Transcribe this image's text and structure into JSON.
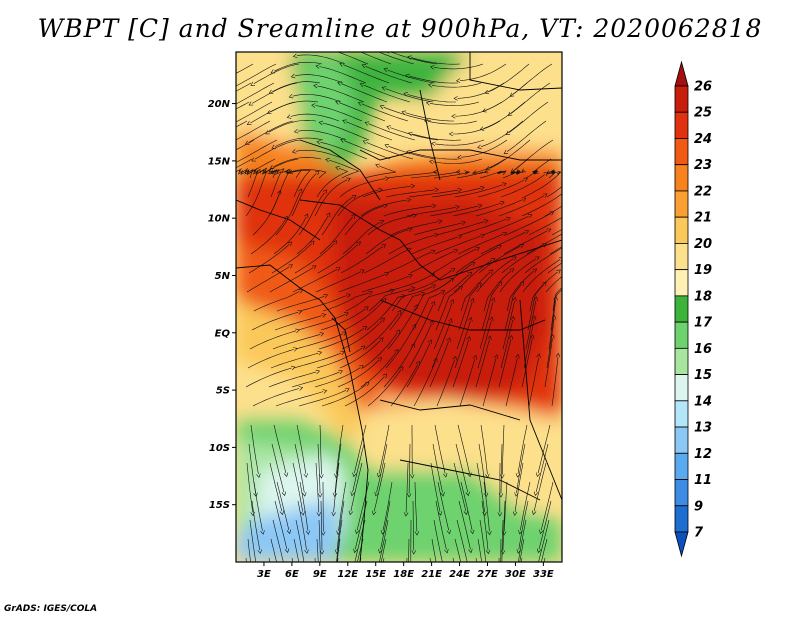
{
  "title": "WBPT [C] and Sreamline at 900hPa, VT: 2020062818",
  "credit": "GrADS: IGES/COLA",
  "map": {
    "lon_range": [
      0,
      35
    ],
    "lat_range": [
      -20,
      24.5
    ],
    "lat_ticks": [
      {
        "value": 20,
        "label": "20N"
      },
      {
        "value": 15,
        "label": "15N"
      },
      {
        "value": 10,
        "label": "10N"
      },
      {
        "value": 5,
        "label": "5N"
      },
      {
        "value": 0,
        "label": "EQ"
      },
      {
        "value": -5,
        "label": "5S"
      },
      {
        "value": -10,
        "label": "10S"
      },
      {
        "value": -15,
        "label": "15S"
      }
    ],
    "lon_ticks": [
      {
        "value": 3,
        "label": "3E"
      },
      {
        "value": 6,
        "label": "6E"
      },
      {
        "value": 9,
        "label": "9E"
      },
      {
        "value": 12,
        "label": "12E"
      },
      {
        "value": 15,
        "label": "15E"
      },
      {
        "value": 18,
        "label": "18E"
      },
      {
        "value": 21,
        "label": "21E"
      },
      {
        "value": 24,
        "label": "24E"
      },
      {
        "value": 27,
        "label": "27E"
      },
      {
        "value": 30,
        "label": "30E"
      },
      {
        "value": 33,
        "label": "33E"
      }
    ]
  },
  "colorbar": {
    "levels": [
      "26",
      "25",
      "24",
      "23",
      "22",
      "21",
      "20",
      "19",
      "18",
      "17",
      "16",
      "15",
      "14",
      "13",
      "12",
      "11",
      "9",
      "7"
    ],
    "colors": [
      "#a50f0f",
      "#c81e0c",
      "#e0320e",
      "#f05a14",
      "#f7821e",
      "#faa032",
      "#fbc85a",
      "#fde08c",
      "#fff0b4",
      "#3cb43c",
      "#6ed26e",
      "#a8e6a0",
      "#dcf5ee",
      "#b4e6fa",
      "#8cc8f5",
      "#5aaaf0",
      "#3c8ce6",
      "#1e6ed2",
      "#0a50be"
    ]
  },
  "fields": {
    "regions": [
      {
        "name": "green-sahara-north",
        "color": "#3cb43c"
      },
      {
        "name": "light-green-sahara",
        "color": "#6ed26e"
      },
      {
        "name": "pale-yellow-north",
        "color": "#fde08c"
      },
      {
        "name": "orange-band-north",
        "color": "#f7821e"
      },
      {
        "name": "red-band-sahel",
        "color": "#e0320e"
      },
      {
        "name": "dark-red-congo",
        "color": "#c81e0c"
      },
      {
        "name": "orange-gulf",
        "color": "#f05a14"
      },
      {
        "name": "yellow-atlantic",
        "color": "#fbc85a"
      },
      {
        "name": "yellow-southern-congo",
        "color": "#fde08c"
      },
      {
        "name": "green-angola",
        "color": "#6ed26e"
      },
      {
        "name": "light-green-southwest",
        "color": "#a8e6a0"
      },
      {
        "name": "pale-cyan-southwest",
        "color": "#dcf5ee"
      },
      {
        "name": "blue-southwest",
        "color": "#8cc8f5"
      }
    ]
  }
}
